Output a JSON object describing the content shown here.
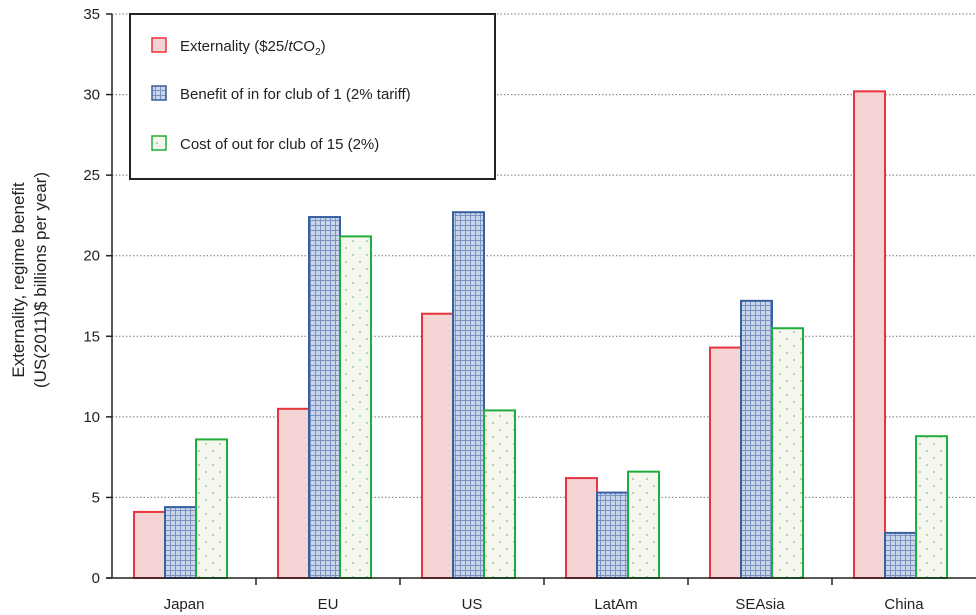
{
  "chart_data": {
    "type": "bar",
    "categories": [
      "Japan",
      "EU",
      "US",
      "LatAm",
      "SEAsia",
      "China"
    ],
    "series": [
      {
        "name": "Externality ($25/tCO2)",
        "label_parts": [
          "Externality (",
          "$25/",
          "t",
          "CO",
          "2",
          ")"
        ],
        "values": [
          4.1,
          10.5,
          16.4,
          6.2,
          14.3,
          30.2
        ],
        "fill": "#f3d3d3",
        "stroke": "#e8343b",
        "pattern": "solid"
      },
      {
        "name": "Benefit of in for club of 1 (2% tariff)",
        "values": [
          4.4,
          22.4,
          22.7,
          5.3,
          17.2,
          2.8
        ],
        "fill": "#c9d6ea",
        "stroke": "#3a5f9f",
        "pattern": "grid"
      },
      {
        "name": "Cost of out for club of 15 (2%)",
        "values": [
          8.6,
          21.2,
          10.4,
          6.6,
          15.5,
          8.8
        ],
        "fill": "#f5f6ee",
        "stroke": "#1fae3b",
        "pattern": "dots"
      }
    ],
    "ylabel_line1": "Externality, regime benefit",
    "ylabel_line2": "(US(2011)$ billions per year)",
    "xlabel": "",
    "ylim": [
      0,
      35
    ],
    "yticks": [
      0,
      5,
      10,
      15,
      20,
      25,
      30,
      35
    ],
    "grid": "horizontal-dotted",
    "legend_position": "top-left"
  }
}
